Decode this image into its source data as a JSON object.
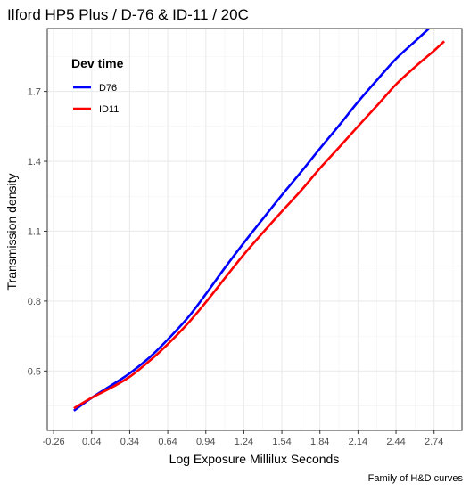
{
  "chart_data": {
    "type": "line",
    "title": "Ilford HP5 Plus / D-76 & ID-11 / 20C",
    "xlabel": "Log Exposure Millilux Seconds",
    "ylabel": "Transmission density",
    "caption": "Family of H&D curves",
    "xlim": [
      -0.31,
      2.96
    ],
    "ylim": [
      0.245,
      1.97
    ],
    "x_ticks": [
      -0.26,
      0.04,
      0.34,
      0.64,
      0.94,
      1.24,
      1.54,
      1.84,
      2.14,
      2.44,
      2.74
    ],
    "x_tick_labels": [
      "-0.26",
      "0.04",
      "0.34",
      "0.64",
      "0.94",
      "1.24",
      "1.54",
      "1.84",
      "2.14",
      "2.44",
      "2.74"
    ],
    "y_ticks": [
      0.5,
      0.8,
      1.1,
      1.4,
      1.7
    ],
    "y_tick_labels": [
      "0.5",
      "0.8",
      "1.1",
      "1.4",
      "1.7"
    ],
    "grid": true,
    "legend": {
      "title": "Dev time",
      "position": "top-left inside"
    },
    "series": [
      {
        "name": "D76",
        "color": "#0000ff",
        "x": [
          -0.1,
          0.04,
          0.2,
          0.34,
          0.5,
          0.64,
          0.8,
          0.94,
          1.1,
          1.24,
          1.4,
          1.54,
          1.7,
          1.84,
          2.0,
          2.14,
          2.3,
          2.44,
          2.6,
          2.74,
          2.82
        ],
        "y": [
          0.33,
          0.385,
          0.44,
          0.49,
          0.56,
          0.635,
          0.73,
          0.83,
          0.95,
          1.05,
          1.16,
          1.255,
          1.36,
          1.455,
          1.56,
          1.655,
          1.755,
          1.84,
          1.92,
          1.99,
          2.03
        ]
      },
      {
        "name": "ID11",
        "color": "#ff0000",
        "x": [
          -0.1,
          0.04,
          0.2,
          0.34,
          0.5,
          0.64,
          0.8,
          0.94,
          1.1,
          1.24,
          1.4,
          1.54,
          1.7,
          1.84,
          2.0,
          2.14,
          2.3,
          2.44,
          2.6,
          2.74,
          2.82
        ],
        "y": [
          0.34,
          0.385,
          0.43,
          0.475,
          0.545,
          0.615,
          0.705,
          0.795,
          0.905,
          1.0,
          1.1,
          1.185,
          1.28,
          1.37,
          1.465,
          1.55,
          1.645,
          1.73,
          1.81,
          1.875,
          1.915
        ]
      }
    ]
  }
}
